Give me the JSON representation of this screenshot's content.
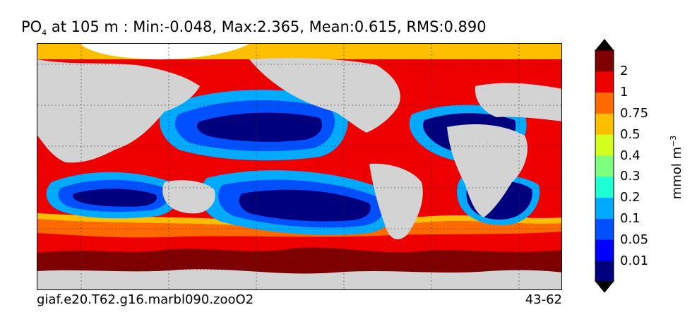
{
  "title": {
    "prefix": "PO",
    "subscript": "4",
    "suffix": " at 105 m : Min:-0.048, Max:2.365, Mean:0.615, RMS:0.890"
  },
  "footer": {
    "case_name": "giaf.e20.T62.g16.marbl090.zooO2",
    "years": "43-62"
  },
  "colorbar": {
    "units_base": "mmol m",
    "units_exp": "−3",
    "ticks": [
      "0.01",
      "0.05",
      "0.1",
      "0.2",
      "0.3",
      "0.4",
      "0.5",
      "0.75",
      "1",
      "2"
    ],
    "colors": [
      "#00007f",
      "#0000ff",
      "#0050ff",
      "#00aaff",
      "#1effd4",
      "#7fff7f",
      "#d4ff1e",
      "#ffbf00",
      "#ff6a00",
      "#ee0000",
      "#7f0000"
    ]
  },
  "map": {
    "land_color": "#d3d3d3",
    "ice_color": "#ffffff",
    "grid": "dashed"
  }
}
